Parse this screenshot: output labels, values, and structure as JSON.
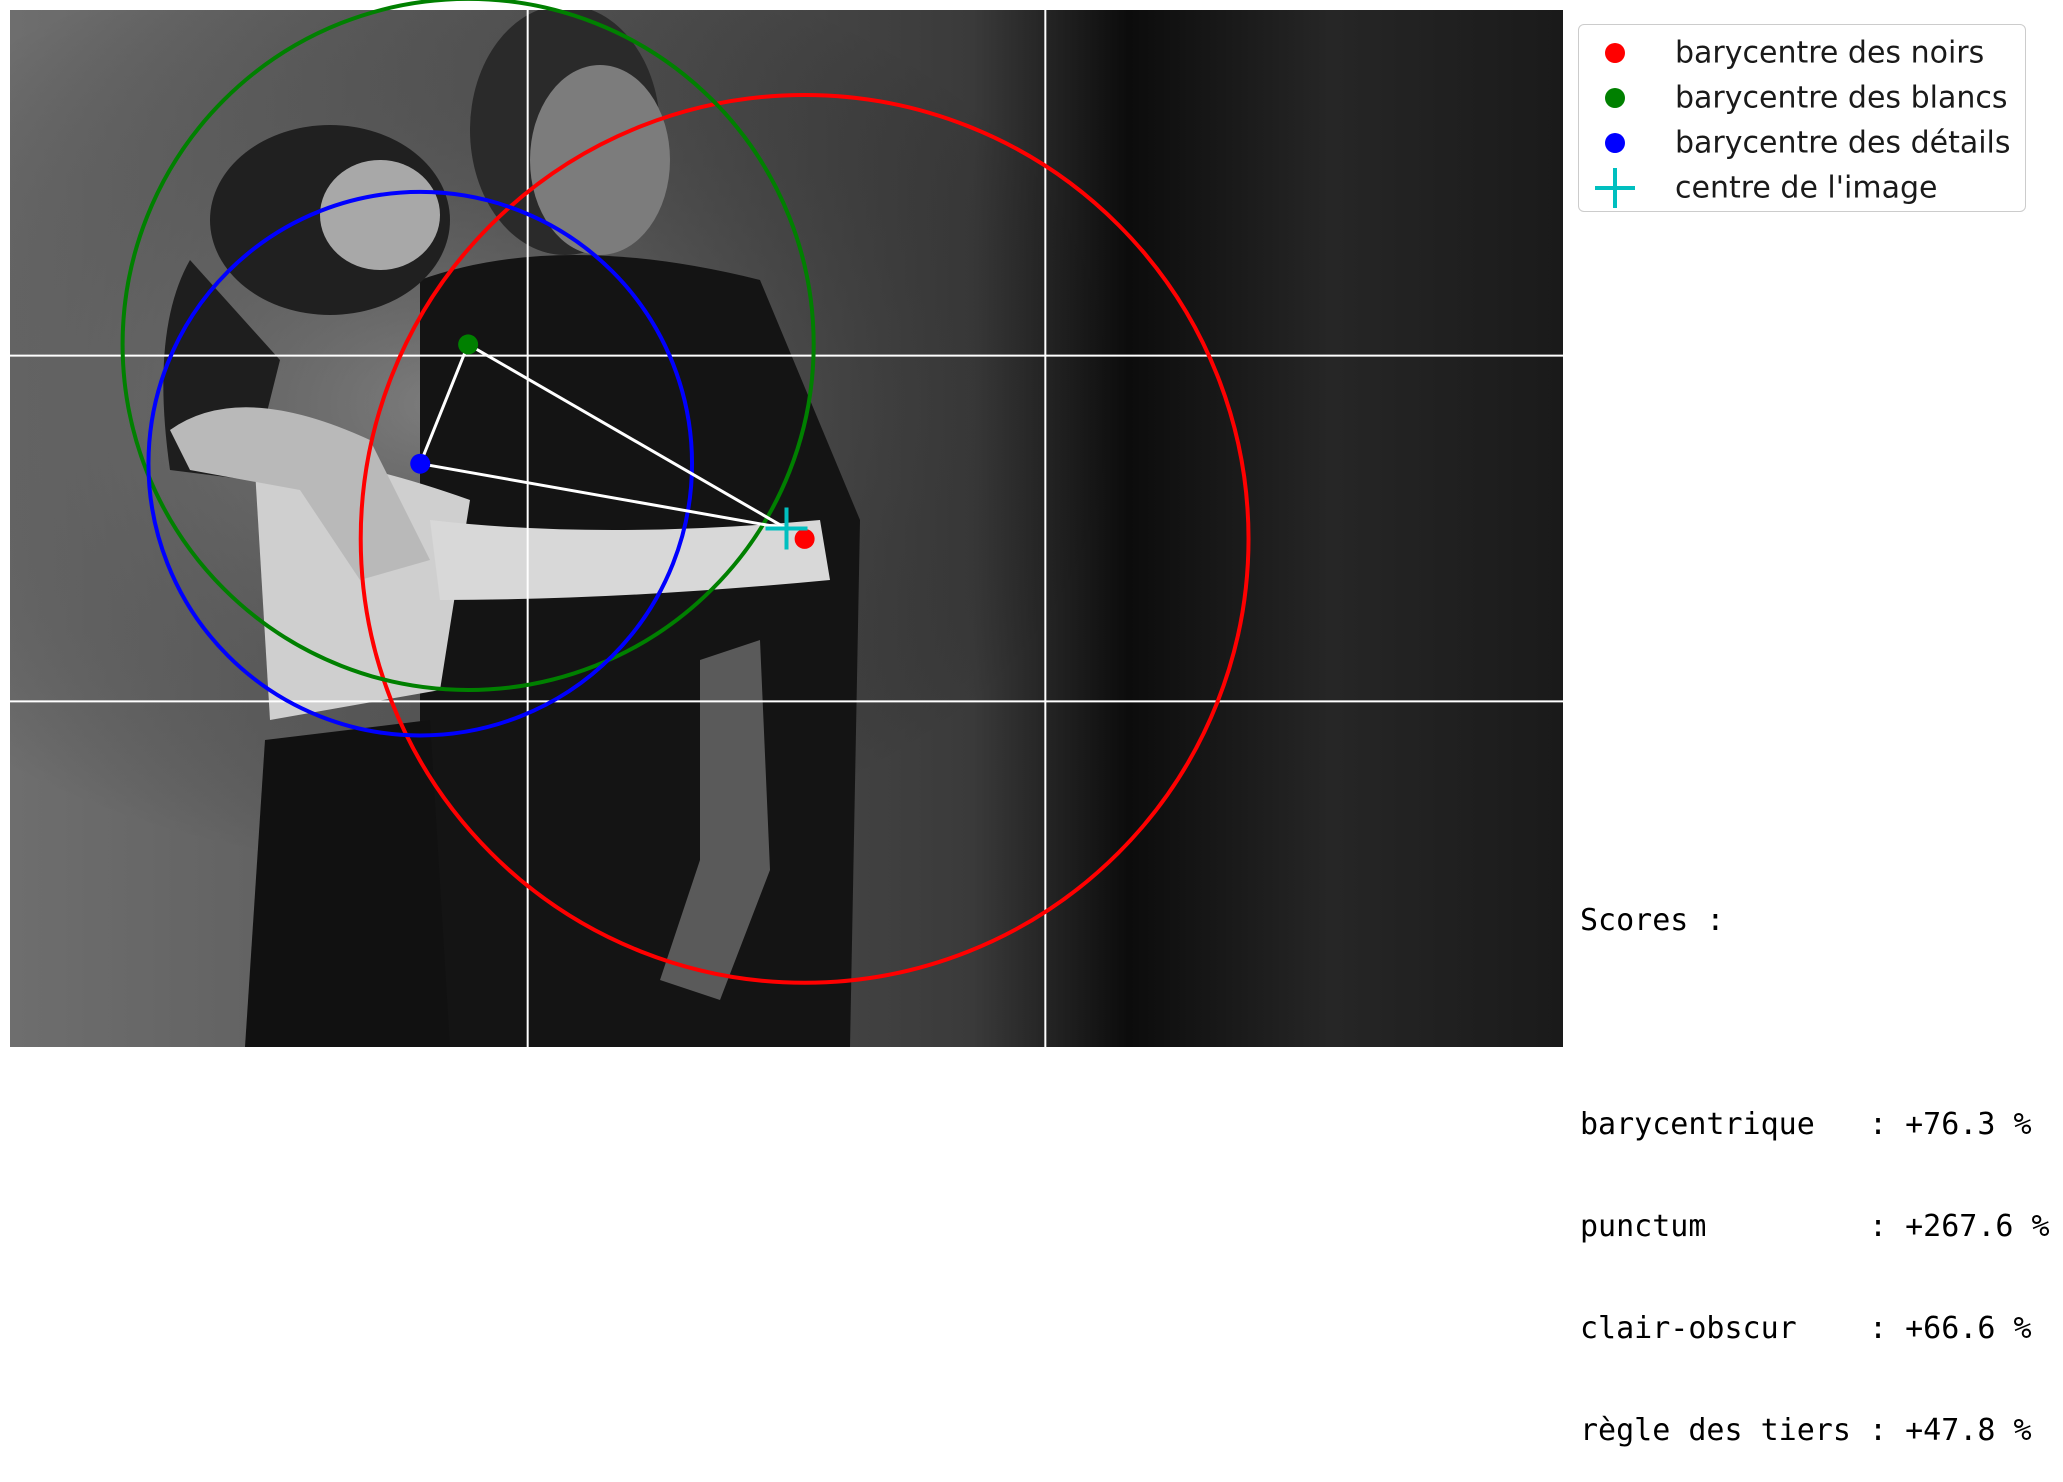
{
  "chart_data": {
    "type": "scatter",
    "title": "",
    "xlabel": "",
    "ylabel": "",
    "xlim": [
      0,
      1200
    ],
    "ylim": [
      800,
      0
    ],
    "grid": "rule of thirds",
    "legend_position": "top-right, outside plot",
    "photo": {
      "description_icon": "photo-couple-embrace",
      "grayscale": true
    },
    "series": [
      {
        "name": "barycentre des noirs",
        "color": "#ff0000",
        "marker": "dot",
        "x": 614,
        "y": 408,
        "circle_radius": 343
      },
      {
        "name": "barycentre des blancs",
        "color": "#008000",
        "marker": "dot",
        "x": 354,
        "y": 258,
        "circle_radius": 267
      },
      {
        "name": "barycentre des détails",
        "color": "#0000ff",
        "marker": "dot",
        "x": 317,
        "y": 350,
        "circle_radius": 210
      },
      {
        "name": "centre de l'image",
        "color": "#00bfbf",
        "marker": "plus",
        "x": 600,
        "y": 400
      }
    ],
    "connections": [
      {
        "from": "barycentre des blancs",
        "to": "barycentre des détails"
      },
      {
        "from": "barycentre des blancs",
        "to": "centre de l'image"
      },
      {
        "from": "barycentre des détails",
        "to": "centre de l'image"
      }
    ],
    "thirds_lines_x": [
      400,
      800
    ],
    "thirds_lines_y": [
      266.67,
      533.33
    ]
  },
  "legend": [
    {
      "label": "barycentre des noirs",
      "color": "#ff0000",
      "icon": "red-dot"
    },
    {
      "label": "barycentre des blancs",
      "color": "#008000",
      "icon": "green-dot"
    },
    {
      "label": "barycentre des détails",
      "color": "#0000ff",
      "icon": "blue-dot"
    },
    {
      "label": "centre de l'image",
      "color": "#00bfbf",
      "icon": "cyan-plus"
    }
  ],
  "scores": {
    "heading": "Scores :",
    "lines": [
      "barycentrique   : +76.3 %",
      "punctum         : +267.6 %",
      "clair-obscur    : +66.6 %",
      "règle des tiers : +47.8 %"
    ]
  }
}
